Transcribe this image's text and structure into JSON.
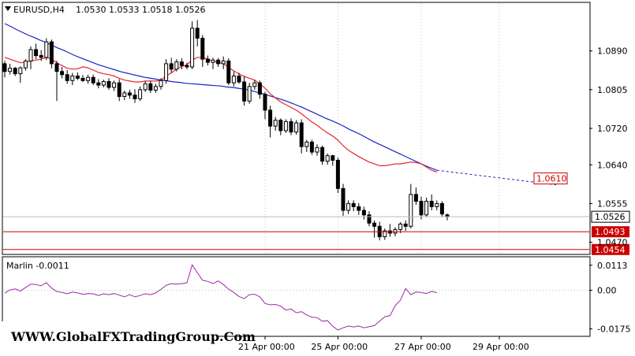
{
  "header": {
    "symbol": "EURUSD,H4",
    "ohlc": "1.0530 1.0533 1.0518 1.0526"
  },
  "indicator": {
    "label": "Marlin -0.0011"
  },
  "watermark": "WWW.GlobalFXTradingGroup.Com",
  "colors": {
    "candle": "#000000",
    "ma_fast": "#e8262a",
    "ma_slow": "#1a22c8",
    "marlin": "#9b2aa8",
    "level_line": "#cc0000",
    "grid": "#c8c8c8"
  },
  "chart_data": {
    "type": "candlestick",
    "price_axis": {
      "ticks": [
        "1.0890",
        "1.0805",
        "1.0720",
        "1.0640",
        "1.0555",
        "1.0470"
      ],
      "tick_values": [
        1.089,
        1.0805,
        1.072,
        1.064,
        1.0555,
        1.047
      ],
      "range": [
        1.0445,
        1.0995
      ]
    },
    "time_axis": {
      "labels": [
        "21 Apr 00:00",
        "25 Apr 00:00",
        "27 Apr 00:00",
        "29 Apr 00:00"
      ],
      "label_bar_index": [
        50,
        64,
        80,
        95
      ]
    },
    "current_price": "1.0526",
    "levels": [
      {
        "label": "1.0493",
        "value": 1.0493
      },
      {
        "label": "1.0454",
        "value": 1.0454
      }
    ],
    "projection": {
      "label": "1.0610",
      "value": 1.061,
      "start_value": 1.0628
    },
    "candles": [
      [
        1.0862,
        1.0868,
        1.0832,
        1.0845
      ],
      [
        1.0845,
        1.0862,
        1.0838,
        1.0852
      ],
      [
        1.0852,
        1.0855,
        1.0835,
        1.084
      ],
      [
        1.084,
        1.0856,
        1.082,
        1.0853
      ],
      [
        1.0853,
        1.0872,
        1.0847,
        1.0868
      ],
      [
        1.0868,
        1.09,
        1.085,
        1.0893
      ],
      [
        1.0893,
        1.0906,
        1.0872,
        1.088
      ],
      [
        1.088,
        1.0892,
        1.0868,
        1.0876
      ],
      [
        1.0876,
        1.0918,
        1.087,
        1.091
      ],
      [
        1.091,
        1.0915,
        1.0852,
        1.0862
      ],
      [
        1.0862,
        1.0868,
        1.078,
        1.0845
      ],
      [
        1.0845,
        1.0855,
        1.083,
        1.0838
      ],
      [
        1.0838,
        1.0848,
        1.0818,
        1.0825
      ],
      [
        1.0825,
        1.0842,
        1.0815,
        1.0835
      ],
      [
        1.0835,
        1.0843,
        1.0826,
        1.083
      ],
      [
        1.083,
        1.0837,
        1.0822,
        1.0825
      ],
      [
        1.0825,
        1.0838,
        1.0818,
        1.0832
      ],
      [
        1.0832,
        1.0838,
        1.0815,
        1.082
      ],
      [
        1.082,
        1.0828,
        1.0808,
        1.0815
      ],
      [
        1.0815,
        1.0827,
        1.081,
        1.0823
      ],
      [
        1.0823,
        1.083,
        1.0805,
        1.081
      ],
      [
        1.081,
        1.0825,
        1.0802,
        1.082
      ],
      [
        1.082,
        1.0828,
        1.078,
        1.079
      ],
      [
        1.079,
        1.0803,
        1.0782,
        1.0798
      ],
      [
        1.0798,
        1.0805,
        1.0785,
        1.0793
      ],
      [
        1.0793,
        1.0806,
        1.0776,
        1.0785
      ],
      [
        1.0785,
        1.0812,
        1.078,
        1.0805
      ],
      [
        1.0805,
        1.0824,
        1.08,
        1.0818
      ],
      [
        1.0818,
        1.0824,
        1.0798,
        1.0804
      ],
      [
        1.0804,
        1.0818,
        1.0798,
        1.0812
      ],
      [
        1.0812,
        1.083,
        1.0805,
        1.0825
      ],
      [
        1.0825,
        1.0872,
        1.0818,
        1.0862
      ],
      [
        1.0862,
        1.0875,
        1.0842,
        1.085
      ],
      [
        1.085,
        1.0872,
        1.0845,
        1.0866
      ],
      [
        1.0866,
        1.0874,
        1.085,
        1.0858
      ],
      [
        1.0858,
        1.0864,
        1.085,
        1.0855
      ],
      [
        1.0855,
        1.0955,
        1.085,
        1.094
      ],
      [
        1.094,
        1.0958,
        1.09,
        1.0918
      ],
      [
        1.0918,
        1.0925,
        1.0855,
        1.0872
      ],
      [
        1.0872,
        1.088,
        1.0858,
        1.0865
      ],
      [
        1.0865,
        1.0875,
        1.085,
        1.087
      ],
      [
        1.087,
        1.0874,
        1.0855,
        1.0862
      ],
      [
        1.0862,
        1.0878,
        1.085,
        1.0868
      ],
      [
        1.0868,
        1.0874,
        1.0815,
        1.082
      ],
      [
        1.082,
        1.0845,
        1.0812,
        1.0835
      ],
      [
        1.0835,
        1.0842,
        1.0818,
        1.0822
      ],
      [
        1.0822,
        1.0835,
        1.077,
        1.078
      ],
      [
        1.078,
        1.082,
        1.0774,
        1.0812
      ],
      [
        1.0812,
        1.0826,
        1.0805,
        1.082
      ],
      [
        1.082,
        1.0825,
        1.0785,
        1.0795
      ],
      [
        1.0795,
        1.08,
        1.074,
        1.076
      ],
      [
        1.076,
        1.077,
        1.07,
        1.0725
      ],
      [
        1.0725,
        1.0745,
        1.0715,
        1.0738
      ],
      [
        1.0738,
        1.0742,
        1.0705,
        1.0715
      ],
      [
        1.0715,
        1.074,
        1.071,
        1.0735
      ],
      [
        1.0735,
        1.0742,
        1.0705,
        1.0712
      ],
      [
        1.0712,
        1.0738,
        1.0706,
        1.0732
      ],
      [
        1.0732,
        1.074,
        1.0665,
        1.068
      ],
      [
        1.068,
        1.0695,
        1.0668,
        1.069
      ],
      [
        1.069,
        1.0695,
        1.0662,
        1.0668
      ],
      [
        1.0668,
        1.0685,
        1.066,
        1.0678
      ],
      [
        1.0678,
        1.0682,
        1.064,
        1.0648
      ],
      [
        1.0648,
        1.0665,
        1.064,
        1.066
      ],
      [
        1.066,
        1.0662,
        1.0638,
        1.065
      ],
      [
        1.065,
        1.0656,
        1.0578,
        1.0588
      ],
      [
        1.0588,
        1.0598,
        1.0528,
        1.054
      ],
      [
        1.054,
        1.0562,
        1.0532,
        1.0555
      ],
      [
        1.0555,
        1.0562,
        1.0538,
        1.0548
      ],
      [
        1.0548,
        1.0556,
        1.053,
        1.054
      ],
      [
        1.054,
        1.0548,
        1.052,
        1.053
      ],
      [
        1.053,
        1.0538,
        1.0505,
        1.0512
      ],
      [
        1.0512,
        1.0518,
        1.048,
        1.0505
      ],
      [
        1.0505,
        1.0515,
        1.0474,
        1.0482
      ],
      [
        1.0482,
        1.05,
        1.0475,
        1.0495
      ],
      [
        1.0495,
        1.051,
        1.0482,
        1.049
      ],
      [
        1.049,
        1.0503,
        1.0483,
        1.0498
      ],
      [
        1.0498,
        1.0514,
        1.049,
        1.051
      ],
      [
        1.051,
        1.0518,
        1.0495,
        1.0505
      ],
      [
        1.0505,
        1.0598,
        1.05,
        1.0575
      ],
      [
        1.0575,
        1.059,
        1.0552,
        1.056
      ],
      [
        1.056,
        1.057,
        1.052,
        1.053
      ],
      [
        1.053,
        1.0568,
        1.0525,
        1.056
      ],
      [
        1.056,
        1.0575,
        1.054,
        1.0548
      ],
      [
        1.0548,
        1.0562,
        1.054,
        1.0555
      ],
      [
        1.0555,
        1.056,
        1.0525,
        1.0532
      ],
      [
        1.053,
        1.0533,
        1.0518,
        1.0526
      ]
    ],
    "ma_fast": [
      1.0876,
      1.0872,
      1.0868,
      1.0864,
      1.0865,
      1.0868,
      1.087,
      1.0872,
      1.0876,
      1.0872,
      1.0864,
      1.0858,
      1.0852,
      1.085,
      1.0851,
      1.0855,
      1.0853,
      1.0848,
      1.0843,
      1.084,
      1.0838,
      1.0835,
      1.083,
      1.0826,
      1.0824,
      1.0822,
      1.0822,
      1.0824,
      1.0824,
      1.0824,
      1.0826,
      1.0835,
      1.0842,
      1.085,
      1.0856,
      1.086,
      1.087,
      1.0876,
      1.0876,
      1.0872,
      1.0868,
      1.0865,
      1.0862,
      1.0854,
      1.0846,
      1.084,
      1.0834,
      1.083,
      1.0826,
      1.0818,
      1.0808,
      1.0796,
      1.0787,
      1.0778,
      1.0772,
      1.0766,
      1.076,
      1.0752,
      1.0743,
      1.0734,
      1.0727,
      1.0718,
      1.071,
      1.0703,
      1.0694,
      1.0682,
      1.0672,
      1.0665,
      1.0658,
      1.0652,
      1.0646,
      1.0642,
      1.0638,
      1.0638,
      1.064,
      1.0642,
      1.0642,
      1.0644,
      1.0646,
      1.0645,
      1.0642,
      1.0635,
      1.0628,
      1.0624
    ],
    "ma_slow": [
      1.095,
      1.0944,
      1.0937,
      1.0931,
      1.0925,
      1.092,
      1.0914,
      1.0909,
      1.0903,
      1.0897,
      1.0892,
      1.0886,
      1.088,
      1.0875,
      1.087,
      1.0865,
      1.086,
      1.0856,
      1.0852,
      1.0848,
      1.0844,
      1.0841,
      1.0838,
      1.0835,
      1.0832,
      1.083,
      1.0828,
      1.0826,
      1.0824,
      1.0822,
      1.0821,
      1.0819,
      1.0818,
      1.0817,
      1.0816,
      1.0815,
      1.0814,
      1.0813,
      1.0811,
      1.081,
      1.0808,
      1.0806,
      1.0804,
      1.08,
      1.0797,
      1.0793,
      1.0789,
      1.0785,
      1.0781,
      1.0776,
      1.0771,
      1.0766,
      1.076,
      1.0754,
      1.0748,
      1.0742,
      1.0737,
      1.0731,
      1.0725,
      1.0718,
      1.0712,
      1.0706,
      1.0699,
      1.0692,
      1.0686,
      1.068,
      1.0674,
      1.0668,
      1.0662,
      1.0656,
      1.065,
      1.0644,
      1.0638,
      1.0633,
      1.0628
    ],
    "marlin": {
      "ticks": [
        "0.0113",
        "0.00",
        "-0.0175"
      ],
      "tick_values": [
        0.0113,
        0.0,
        -0.0175
      ],
      "range": [
        -0.0205,
        0.0148
      ],
      "values": [
        -0.0012,
        0.0001,
        0.0006,
        -0.0004,
        0.0012,
        0.0028,
        0.0026,
        0.002,
        0.0034,
        0.001,
        -0.0006,
        -0.001,
        -0.0016,
        -0.0008,
        -0.0012,
        -0.0018,
        -0.0015,
        -0.0016,
        -0.0024,
        -0.0016,
        -0.002,
        -0.0015,
        -0.0022,
        -0.003,
        -0.002,
        -0.003,
        -0.0024,
        -0.0016,
        -0.002,
        -0.0012,
        0.0004,
        0.0022,
        0.003,
        0.0028,
        0.003,
        0.0034,
        0.0115,
        0.008,
        0.0045,
        0.004,
        0.003,
        0.0042,
        0.0026,
        0.0005,
        -0.001,
        -0.0028,
        -0.0038,
        -0.002,
        -0.0018,
        -0.003,
        -0.006,
        -0.0066,
        -0.0064,
        -0.0072,
        -0.009,
        -0.0085,
        -0.0102,
        -0.0097,
        -0.0112,
        -0.0122,
        -0.0124,
        -0.014,
        -0.0138,
        -0.0163,
        -0.018,
        -0.017,
        -0.0162,
        -0.0166,
        -0.0162,
        -0.017,
        -0.0165,
        -0.016,
        -0.014,
        -0.012,
        -0.0115,
        -0.007,
        -0.0045,
        0.0008,
        -0.002,
        -0.0008,
        -0.001,
        -0.0015,
        -0.0005,
        -0.0011
      ]
    }
  }
}
